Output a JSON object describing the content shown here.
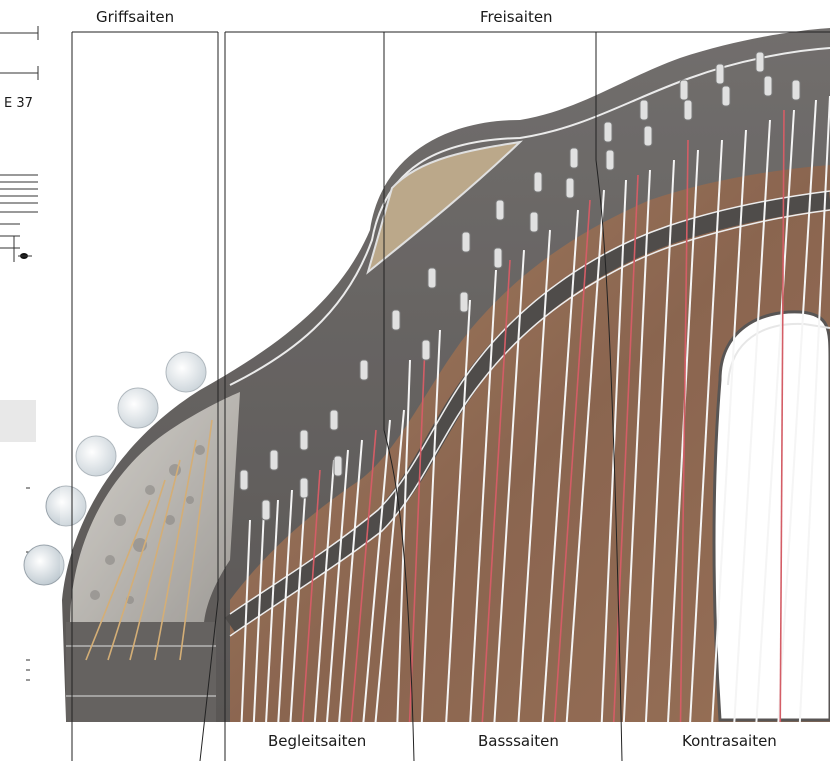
{
  "labels": {
    "top": [
      "Griffsaiten",
      "Freisaiten"
    ],
    "bottom": [
      "Begleitsaiten",
      "Basssaiten",
      "Kontrasaiten"
    ]
  },
  "margin": {
    "page_ref": "E 37"
  },
  "colors": {
    "body_wood": "#6a3a1e",
    "frame_dark": "#2e2a28",
    "string_white": "#f2f2f2",
    "string_red": "#c8303c",
    "string_brass": "#c89850",
    "tuning_key": "#cfd6dc",
    "line": "#222222"
  }
}
